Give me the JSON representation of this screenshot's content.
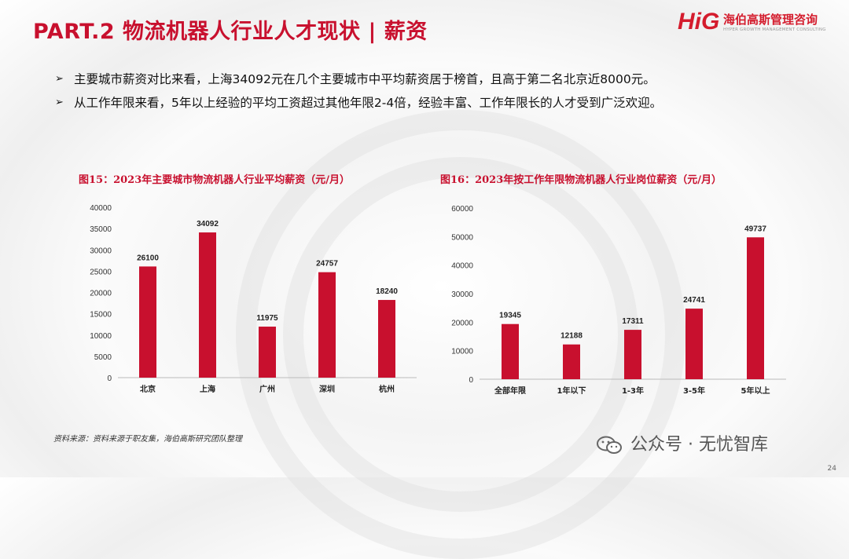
{
  "header": {
    "title": "PART.2 物流机器人行业人才现状 | 薪资",
    "logo_mark": "HiG",
    "logo_cn": "海伯高斯管理咨询",
    "logo_en": "HYPER GROWTH MANAGEMENT CONSULTING"
  },
  "bullets": [
    "主要城市薪资对比来看，上海34092元在几个主要城市中平均薪资居于榜首，且高于第二名北京近8000元。",
    "从工作年限来看，5年以上经验的平均工资超过其他年限2-4倍，经验丰富、工作年限长的人才受到广泛欢迎。"
  ],
  "bullet_marker": "➢",
  "chart_data": [
    {
      "type": "bar",
      "title": "图15：2023年主要城市物流机器人行业平均薪资（元/月）",
      "categories": [
        "北京",
        "上海",
        "广州",
        "深圳",
        "杭州"
      ],
      "values": [
        26100,
        34092,
        11975,
        24757,
        18240
      ],
      "ylim": [
        0,
        40000
      ],
      "yticks": [
        0,
        5000,
        10000,
        15000,
        20000,
        25000,
        30000,
        35000,
        40000
      ],
      "xlabel": "",
      "ylabel": "",
      "color": "#c8102e"
    },
    {
      "type": "bar",
      "title": "图16：2023年按工作年限物流机器人行业岗位薪资（元/月）",
      "categories": [
        "全部年限",
        "1年以下",
        "1-3年",
        "3-5年",
        "5年以上"
      ],
      "values": [
        19345,
        12188,
        17311,
        24741,
        49737
      ],
      "ylim": [
        0,
        60000
      ],
      "yticks": [
        0,
        10000,
        20000,
        30000,
        40000,
        50000,
        60000
      ],
      "xlabel": "",
      "ylabel": "",
      "color": "#c8102e"
    }
  ],
  "footer": {
    "source": "资料来源：资料来源于职友集，海伯高斯研究团队整理",
    "watermark": "公众号 · 无忧智库",
    "page_number": "24"
  }
}
